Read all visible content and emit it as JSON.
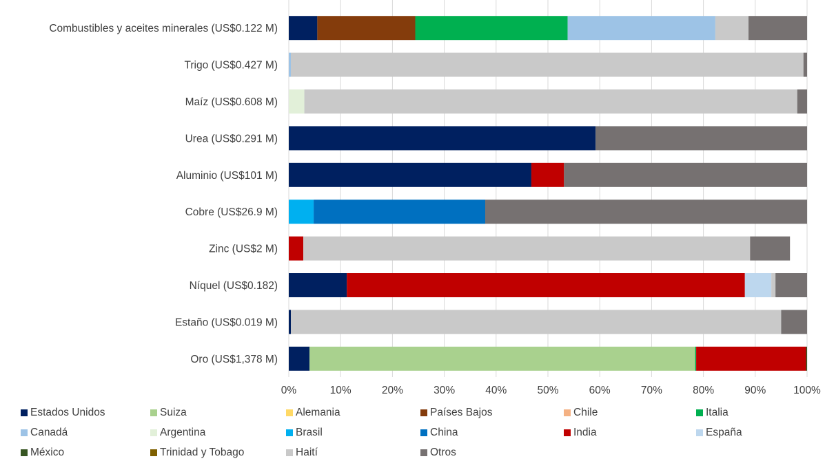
{
  "chart_data": {
    "type": "bar",
    "orientation": "horizontal",
    "stacked": "percent",
    "title": "",
    "xlabel": "",
    "ylabel": "",
    "xlim": [
      0,
      100
    ],
    "x_ticks": [
      "0%",
      "10%",
      "20%",
      "30%",
      "40%",
      "50%",
      "60%",
      "70%",
      "80%",
      "90%",
      "100%"
    ],
    "grid": "vertical",
    "legend_position": "bottom",
    "categories": [
      "Combustibles y aceites minerales (US$0.122 M)",
      "Trigo (US$0.427 M)",
      "Maíz (US$0.608 M)",
      "Urea (US$0.291 M)",
      "Aluminio (US$101 M)",
      "Cobre (US$26.9 M)",
      "Zinc (US$2 M)",
      "Níquel (US$0.182)",
      "Estaño (US$0.019 M)",
      "Oro (US$1,378 M)"
    ],
    "series": [
      {
        "name": "Estados Unidos",
        "color": "#002060",
        "values": [
          5.5,
          0,
          0,
          59.2,
          46.8,
          0,
          0,
          11.2,
          0.4,
          4.0
        ]
      },
      {
        "name": "Suiza",
        "color": "#A9D18E",
        "values": [
          0,
          0,
          0,
          0,
          0,
          0,
          0,
          0,
          0,
          74.4
        ]
      },
      {
        "name": "Alemania",
        "color": "#FFD966",
        "values": [
          0,
          0,
          0,
          0,
          0,
          0,
          0,
          0,
          0,
          0
        ]
      },
      {
        "name": "Países Bajos",
        "color": "#843C0C",
        "values": [
          18.9,
          0,
          0,
          0,
          0,
          0,
          0,
          0,
          0,
          0
        ]
      },
      {
        "name": "Chile",
        "color": "#F4B183",
        "values": [
          0,
          0,
          0,
          0,
          0,
          0,
          0,
          0,
          0,
          0
        ]
      },
      {
        "name": "Italia",
        "color": "#00B050",
        "values": [
          29.4,
          0,
          0,
          0,
          0,
          0,
          0,
          0,
          0,
          0.2
        ]
      },
      {
        "name": "Canadá",
        "color": "#9DC3E6",
        "values": [
          28.5,
          0.4,
          0,
          0,
          0,
          0,
          0,
          0,
          0,
          0
        ]
      },
      {
        "name": "Argentina",
        "color": "#E2F0D9",
        "values": [
          0,
          0,
          3.0,
          0,
          0,
          0,
          0,
          0,
          0,
          0
        ]
      },
      {
        "name": "Brasil",
        "color": "#00B0F0",
        "values": [
          0,
          0,
          0,
          0,
          0,
          4.8,
          0,
          0,
          0,
          0
        ]
      },
      {
        "name": "China",
        "color": "#0070C0",
        "values": [
          0,
          0,
          0,
          0,
          0,
          33.1,
          0,
          0,
          0,
          0
        ]
      },
      {
        "name": "India",
        "color": "#C00000",
        "values": [
          0,
          0,
          0,
          0,
          6.3,
          0,
          2.8,
          76.8,
          0,
          21.2
        ]
      },
      {
        "name": "España",
        "color": "#BDD7EE",
        "values": [
          0,
          0,
          0,
          0,
          0,
          0,
          0,
          5.1,
          0,
          0
        ]
      },
      {
        "name": "México",
        "color": "#375623",
        "values": [
          0,
          0,
          0,
          0,
          0,
          0,
          0,
          0,
          0,
          0.2
        ]
      },
      {
        "name": "Trinidad y Tobago",
        "color": "#7F6000",
        "values": [
          0,
          0,
          0,
          0,
          0,
          0,
          0,
          0,
          0,
          0
        ]
      },
      {
        "name": "Haití",
        "color": "#C9C9C9",
        "values": [
          6.4,
          98.9,
          95.1,
          0,
          0,
          0,
          86.2,
          0.8,
          94.6,
          0
        ]
      },
      {
        "name": "Otros",
        "color": "#767171",
        "values": [
          11.3,
          0.7,
          1.9,
          40.8,
          46.9,
          62.1,
          7.7,
          6.1,
          5.0,
          0
        ]
      }
    ]
  }
}
